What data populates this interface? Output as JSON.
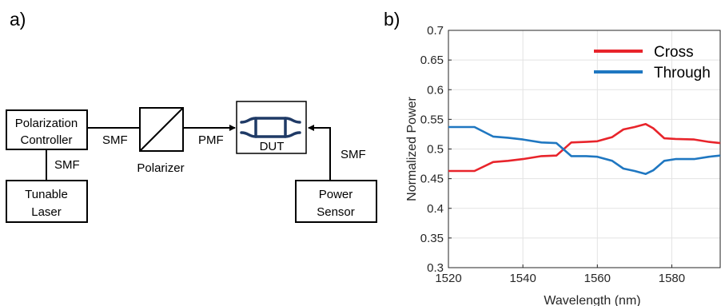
{
  "panel_a": {
    "label": "a)",
    "blocks": {
      "controller": [
        "Polarization",
        "Controller"
      ],
      "laser": [
        "Tunable",
        "Laser"
      ],
      "polarizer": "Polarizer",
      "dut": "DUT",
      "sensor": [
        "Power",
        "Sensor"
      ]
    },
    "links": {
      "ctrl_laser": "SMF",
      "ctrl_polarizer": "SMF",
      "polarizer_dut": "PMF",
      "sensor_dut": "SMF"
    }
  },
  "panel_b": {
    "label": "b)"
  },
  "chart_data": {
    "type": "line",
    "title": "",
    "xlabel": "Wavelength (nm)",
    "ylabel": "Normalized Power",
    "xlim": [
      1520,
      1593
    ],
    "ylim": [
      0.3,
      0.7
    ],
    "xticks": [
      1520,
      1540,
      1560,
      1580
    ],
    "yticks": [
      0.3,
      0.35,
      0.4,
      0.45,
      0.5,
      0.55,
      0.6,
      0.65,
      0.7
    ],
    "grid": true,
    "legend_position": "top-right",
    "series": [
      {
        "name": "Cross",
        "color": "#e8242b",
        "x": [
          1520,
          1524,
          1527,
          1532,
          1536,
          1540,
          1545,
          1549,
          1553,
          1557,
          1560,
          1564,
          1567,
          1570,
          1573,
          1575,
          1578,
          1581,
          1586,
          1590,
          1593
        ],
        "y": [
          0.463,
          0.463,
          0.463,
          0.478,
          0.48,
          0.483,
          0.488,
          0.489,
          0.511,
          0.512,
          0.513,
          0.52,
          0.533,
          0.537,
          0.542,
          0.535,
          0.518,
          0.517,
          0.516,
          0.512,
          0.51
        ]
      },
      {
        "name": "Through",
        "color": "#1f77c1",
        "x": [
          1520,
          1524,
          1527,
          1532,
          1536,
          1540,
          1545,
          1549,
          1553,
          1557,
          1560,
          1564,
          1567,
          1570,
          1573,
          1575,
          1578,
          1581,
          1586,
          1590,
          1593
        ],
        "y": [
          0.537,
          0.537,
          0.537,
          0.521,
          0.519,
          0.516,
          0.511,
          0.51,
          0.488,
          0.488,
          0.487,
          0.48,
          0.467,
          0.463,
          0.458,
          0.464,
          0.48,
          0.483,
          0.483,
          0.487,
          0.489
        ]
      }
    ]
  }
}
